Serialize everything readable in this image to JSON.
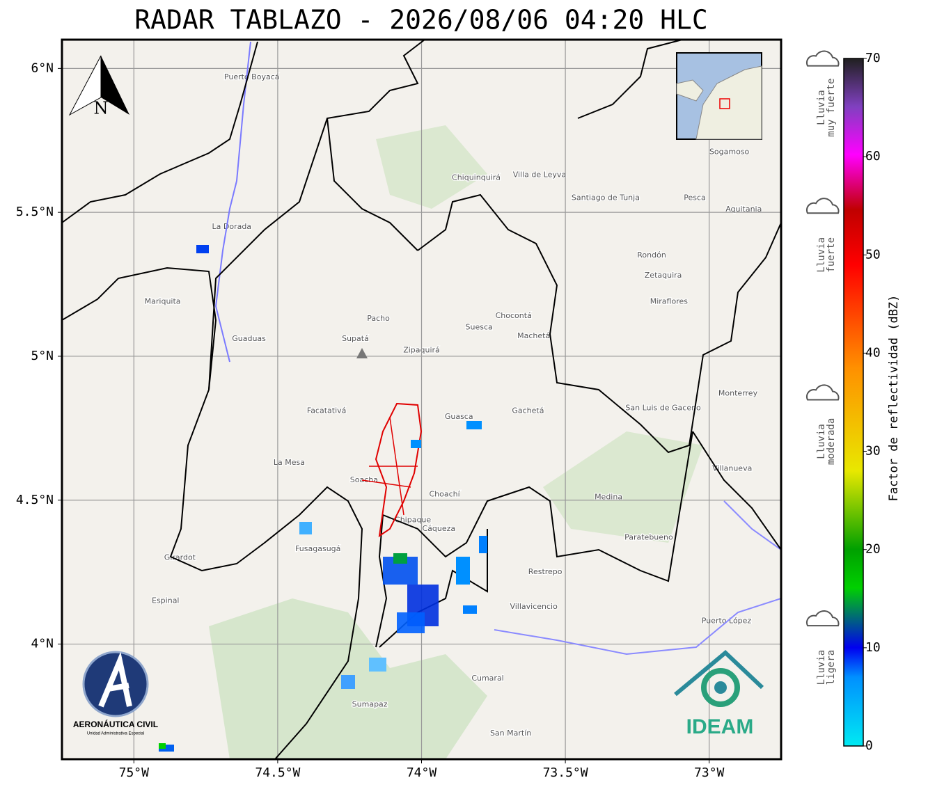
{
  "title": "RADAR TABLAZO - 2026/08/06 04:20 HLC",
  "map": {
    "lonlim": [
      -75.25,
      -72.75
    ],
    "latlim": [
      3.6,
      6.1
    ],
    "lonticks": [
      {
        "value": -75,
        "label": "75°W"
      },
      {
        "value": -74.5,
        "label": "74.5°W"
      },
      {
        "value": -74,
        "label": "74°W"
      },
      {
        "value": -73.5,
        "label": "73.5°W"
      },
      {
        "value": -73,
        "label": "73°W"
      }
    ],
    "latticks": [
      {
        "value": 6,
        "label": "6°N"
      },
      {
        "value": 5.5,
        "label": "5.5°N"
      },
      {
        "value": 5,
        "label": "5°N"
      },
      {
        "value": 4.5,
        "label": "4.5°N"
      },
      {
        "value": 4,
        "label": "4°N"
      }
    ],
    "grid": true,
    "north_label": "N",
    "places": [
      {
        "name": "Villavicencio",
        "lon": -73.61,
        "lat": 4.13
      },
      {
        "name": "Zipaquirá",
        "lon": -74.0,
        "lat": 5.02
      },
      {
        "name": "Suesca",
        "lon": -73.8,
        "lat": 5.1
      },
      {
        "name": "Sogamoso",
        "lon": -72.93,
        "lat": 5.71
      },
      {
        "name": "Villa de Leyva",
        "lon": -73.59,
        "lat": 5.63
      },
      {
        "name": "Santiago de Tunja",
        "lon": -73.36,
        "lat": 5.55
      },
      {
        "name": "Guasca",
        "lon": -73.87,
        "lat": 4.79
      },
      {
        "name": "Chipaque",
        "lon": -74.03,
        "lat": 4.43
      },
      {
        "name": "Fusagasugá",
        "lon": -74.36,
        "lat": 4.33
      },
      {
        "name": "Girardot",
        "lon": -74.84,
        "lat": 4.3
      },
      {
        "name": "La Dorada",
        "lon": -74.66,
        "lat": 5.45
      },
      {
        "name": "Mariquita",
        "lon": -74.9,
        "lat": 5.19
      },
      {
        "name": "Guaduas",
        "lon": -74.6,
        "lat": 5.06
      },
      {
        "name": "Facatativá",
        "lon": -74.33,
        "lat": 4.81
      },
      {
        "name": "Soacha",
        "lon": -74.2,
        "lat": 4.57
      },
      {
        "name": "Choachí",
        "lon": -73.92,
        "lat": 4.52
      },
      {
        "name": "Cáqueza",
        "lon": -73.94,
        "lat": 4.4
      },
      {
        "name": "Gachetá",
        "lon": -73.63,
        "lat": 4.81
      },
      {
        "name": "Chocontá",
        "lon": -73.68,
        "lat": 5.14
      },
      {
        "name": "Medina",
        "lon": -73.35,
        "lat": 4.51
      },
      {
        "name": "Paratebueno",
        "lon": -73.21,
        "lat": 4.37
      },
      {
        "name": "Restrepo",
        "lon": -73.57,
        "lat": 4.25
      },
      {
        "name": "Puerto López",
        "lon": -72.94,
        "lat": 4.08
      },
      {
        "name": "San Martín",
        "lon": -73.69,
        "lat": 3.69
      },
      {
        "name": "Cumaral",
        "lon": -73.77,
        "lat": 3.88
      },
      {
        "name": "Pacho",
        "lon": -74.15,
        "lat": 5.13
      },
      {
        "name": "Supatá",
        "lon": -74.23,
        "lat": 5.06
      },
      {
        "name": "La Mesa",
        "lon": -74.46,
        "lat": 4.63
      },
      {
        "name": "Espinal",
        "lon": -74.89,
        "lat": 4.15
      },
      {
        "name": "Puerto Boyacá",
        "lon": -74.59,
        "lat": 5.97
      },
      {
        "name": "Chiquinquirá",
        "lon": -73.81,
        "lat": 5.62
      },
      {
        "name": "Machetá",
        "lon": -73.61,
        "lat": 5.07
      },
      {
        "name": "San Luis de Gaceno",
        "lon": -73.16,
        "lat": 4.82
      },
      {
        "name": "Monterrey",
        "lon": -72.9,
        "lat": 4.87
      },
      {
        "name": "Villanueva",
        "lon": -72.92,
        "lat": 4.61
      },
      {
        "name": "Zetaquira",
        "lon": -73.16,
        "lat": 5.28
      },
      {
        "name": "Miraflores",
        "lon": -73.14,
        "lat": 5.19
      },
      {
        "name": "Rondón",
        "lon": -73.2,
        "lat": 5.35
      },
      {
        "name": "Pesca",
        "lon": -73.05,
        "lat": 5.55
      },
      {
        "name": "Aquitania",
        "lon": -72.88,
        "lat": 5.51
      },
      {
        "name": "Sumapaz",
        "lon": -74.18,
        "lat": 3.79
      }
    ]
  },
  "colorbar": {
    "label": "Factor de reflectividad (dBZ)",
    "lim": [
      0,
      70
    ],
    "ticks": [
      0,
      10,
      20,
      30,
      40,
      50,
      60,
      70
    ],
    "categories": [
      {
        "lines": [
          "Lluvia",
          "muy fuerte"
        ],
        "level": 65
      },
      {
        "lines": [
          "Lluvia",
          "fuerte"
        ],
        "level": 50
      },
      {
        "lines": [
          "Lluvia",
          "moderada"
        ],
        "level": 31
      },
      {
        "lines": [
          "Lluvia",
          "ligera"
        ],
        "level": 8
      }
    ]
  },
  "logos": {
    "aerocivil": "AERONÁUTICA CIVIL",
    "aerocivil_sub": "Unidad Administrativa Especial",
    "ideam": "IDEAM"
  }
}
